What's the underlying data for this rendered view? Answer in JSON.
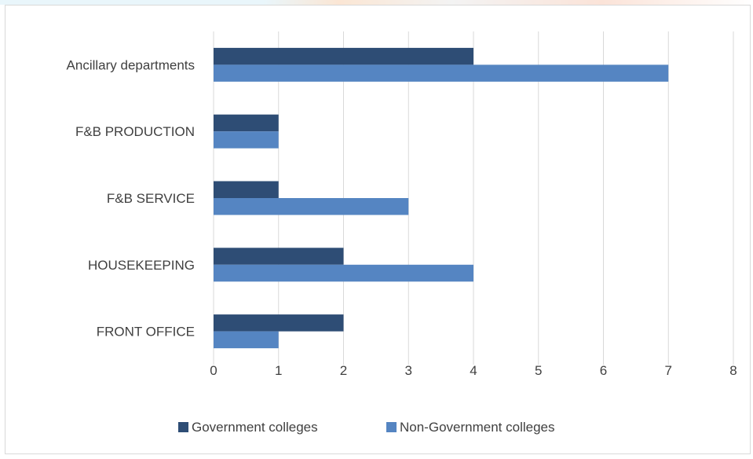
{
  "chart_data": {
    "type": "bar",
    "orientation": "horizontal",
    "categories": [
      "Ancillary departments",
      "F&B PRODUCTION",
      "F&B SERVICE",
      "HOUSEKEEPING",
      "FRONT OFFICE"
    ],
    "series": [
      {
        "name": "Government colleges",
        "values": [
          4,
          1,
          1,
          2,
          2
        ],
        "color": "#2e4d75"
      },
      {
        "name": "Non-Government colleges",
        "values": [
          7,
          1,
          3,
          4,
          1
        ],
        "color": "#5585c2"
      }
    ],
    "xlim": [
      0,
      8
    ],
    "xticks": [
      "0",
      "1",
      "2",
      "3",
      "4",
      "5",
      "6",
      "7",
      "8"
    ],
    "grid": "vertical",
    "legend_position": "bottom",
    "gridline_color": "#d9d9d9",
    "text_color": "#404040"
  }
}
